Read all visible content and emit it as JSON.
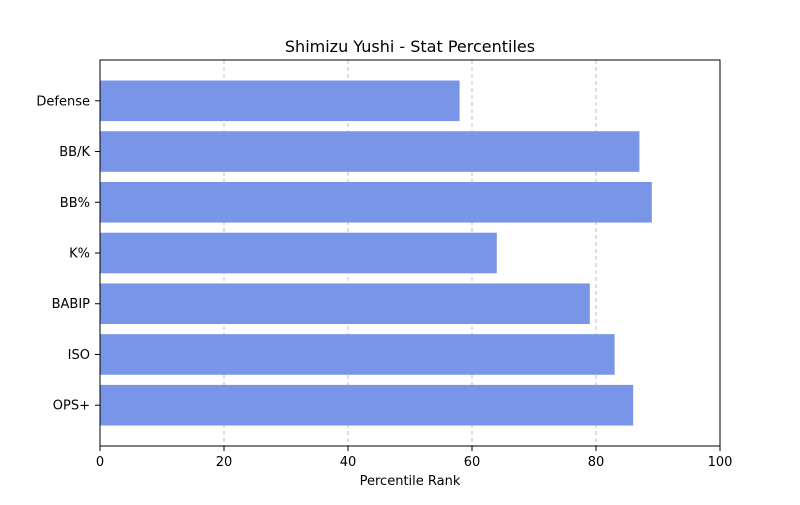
{
  "chart_data": {
    "type": "bar",
    "orientation": "horizontal",
    "title": "Shimizu Yushi - Stat Percentiles",
    "xlabel": "Percentile Rank",
    "ylabel": "",
    "categories": [
      "Defense",
      "BB/K",
      "BB%",
      "K%",
      "BABIP",
      "ISO",
      "OPS+"
    ],
    "values": [
      58,
      87,
      89,
      64,
      79,
      83,
      86
    ],
    "xlim": [
      0,
      100
    ],
    "xticks": [
      0,
      20,
      40,
      60,
      80,
      100
    ],
    "grid": "x-axis dashed",
    "bar_color": "#7895e8"
  }
}
